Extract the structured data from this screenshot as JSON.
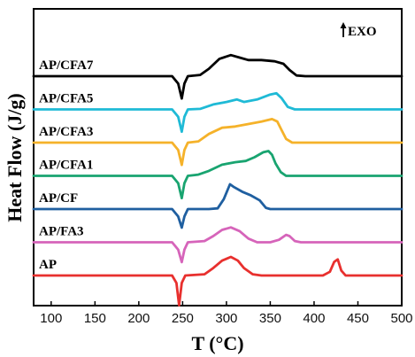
{
  "chart_data": {
    "type": "line",
    "title": "",
    "xlabel": "T (°C)",
    "ylabel": "Heat Flow (J/g)",
    "xlim": [
      80,
      500
    ],
    "xticks": [
      100,
      150,
      200,
      250,
      300,
      350,
      400,
      450,
      500
    ],
    "y_ticks_shown": false,
    "grid": false,
    "annotation": "EXO",
    "annotation_arrow": "up",
    "layout": "stacked curves, vertically offset",
    "series": [
      {
        "name": "AP/CFA7",
        "color": "#000000",
        "baseline": 6.0,
        "points": [
          [
            80,
            0
          ],
          [
            200,
            0
          ],
          [
            238,
            0
          ],
          [
            245,
            -0.3
          ],
          [
            249,
            -0.9
          ],
          [
            252,
            -0.3
          ],
          [
            256,
            0
          ],
          [
            270,
            0.05
          ],
          [
            280,
            0.3
          ],
          [
            292,
            0.7
          ],
          [
            305,
            0.85
          ],
          [
            315,
            0.75
          ],
          [
            325,
            0.65
          ],
          [
            340,
            0.65
          ],
          [
            355,
            0.6
          ],
          [
            365,
            0.5
          ],
          [
            372,
            0.25
          ],
          [
            380,
            0.03
          ],
          [
            390,
            0
          ],
          [
            500,
            0
          ]
        ]
      },
      {
        "name": "AP/CFA5",
        "color": "#1fbad6",
        "baseline": 5.0,
        "points": [
          [
            80,
            0
          ],
          [
            200,
            0
          ],
          [
            238,
            0
          ],
          [
            245,
            -0.3
          ],
          [
            249,
            -0.9
          ],
          [
            252,
            -0.3
          ],
          [
            256,
            0
          ],
          [
            270,
            0.02
          ],
          [
            285,
            0.2
          ],
          [
            300,
            0.3
          ],
          [
            312,
            0.4
          ],
          [
            320,
            0.3
          ],
          [
            335,
            0.4
          ],
          [
            350,
            0.6
          ],
          [
            357,
            0.65
          ],
          [
            363,
            0.45
          ],
          [
            370,
            0.1
          ],
          [
            378,
            0
          ],
          [
            500,
            0
          ]
        ]
      },
      {
        "name": "AP/CFA3",
        "color": "#f5b22a",
        "baseline": 4.0,
        "points": [
          [
            80,
            0
          ],
          [
            200,
            0
          ],
          [
            238,
            0
          ],
          [
            245,
            -0.3
          ],
          [
            249,
            -0.9
          ],
          [
            252,
            -0.3
          ],
          [
            256,
            0
          ],
          [
            268,
            0.05
          ],
          [
            280,
            0.35
          ],
          [
            295,
            0.6
          ],
          [
            310,
            0.65
          ],
          [
            325,
            0.75
          ],
          [
            340,
            0.85
          ],
          [
            352,
            0.95
          ],
          [
            358,
            0.85
          ],
          [
            363,
            0.5
          ],
          [
            368,
            0.15
          ],
          [
            375,
            0
          ],
          [
            500,
            0
          ]
        ]
      },
      {
        "name": "AP/CFA1",
        "color": "#19a470",
        "baseline": 3.0,
        "points": [
          [
            80,
            0
          ],
          [
            200,
            0
          ],
          [
            238,
            0
          ],
          [
            245,
            -0.3
          ],
          [
            249,
            -0.9
          ],
          [
            252,
            -0.3
          ],
          [
            256,
            0
          ],
          [
            268,
            0.05
          ],
          [
            280,
            0.2
          ],
          [
            295,
            0.45
          ],
          [
            310,
            0.55
          ],
          [
            322,
            0.6
          ],
          [
            332,
            0.75
          ],
          [
            342,
            0.95
          ],
          [
            348,
            1.0
          ],
          [
            352,
            0.85
          ],
          [
            356,
            0.5
          ],
          [
            362,
            0.15
          ],
          [
            368,
            0
          ],
          [
            500,
            0
          ]
        ]
      },
      {
        "name": "AP/CF",
        "color": "#1f5fa0",
        "baseline": 2.0,
        "points": [
          [
            80,
            0
          ],
          [
            200,
            0
          ],
          [
            238,
            0
          ],
          [
            245,
            -0.3
          ],
          [
            249,
            -0.75
          ],
          [
            252,
            -0.3
          ],
          [
            256,
            0
          ],
          [
            280,
            0
          ],
          [
            290,
            0.03
          ],
          [
            297,
            0.4
          ],
          [
            304,
            1.0
          ],
          [
            308,
            0.9
          ],
          [
            318,
            0.7
          ],
          [
            328,
            0.55
          ],
          [
            338,
            0.35
          ],
          [
            345,
            0.05
          ],
          [
            350,
            0
          ],
          [
            500,
            0
          ]
        ]
      },
      {
        "name": "AP/FA3",
        "color": "#d664ba",
        "baseline": 1.0,
        "points": [
          [
            80,
            0
          ],
          [
            200,
            0
          ],
          [
            238,
            0
          ],
          [
            245,
            -0.3
          ],
          [
            249,
            -0.8
          ],
          [
            252,
            -0.3
          ],
          [
            256,
            0
          ],
          [
            275,
            0.05
          ],
          [
            285,
            0.25
          ],
          [
            295,
            0.5
          ],
          [
            305,
            0.6
          ],
          [
            315,
            0.45
          ],
          [
            325,
            0.15
          ],
          [
            335,
            0
          ],
          [
            350,
            0
          ],
          [
            360,
            0.1
          ],
          [
            368,
            0.3
          ],
          [
            372,
            0.25
          ],
          [
            378,
            0.05
          ],
          [
            385,
            0
          ],
          [
            500,
            0
          ]
        ]
      },
      {
        "name": "AP",
        "color": "#e8302e",
        "baseline": 0.0,
        "points": [
          [
            80,
            0
          ],
          [
            200,
            0
          ],
          [
            238,
            0
          ],
          [
            243,
            -0.3
          ],
          [
            246,
            -1.2
          ],
          [
            249,
            -0.3
          ],
          [
            253,
            0
          ],
          [
            275,
            0.05
          ],
          [
            285,
            0.3
          ],
          [
            295,
            0.6
          ],
          [
            305,
            0.75
          ],
          [
            313,
            0.6
          ],
          [
            320,
            0.3
          ],
          [
            330,
            0.05
          ],
          [
            340,
            0
          ],
          [
            410,
            0
          ],
          [
            418,
            0.15
          ],
          [
            423,
            0.55
          ],
          [
            427,
            0.65
          ],
          [
            431,
            0.2
          ],
          [
            436,
            0
          ],
          [
            500,
            0
          ]
        ]
      }
    ]
  }
}
